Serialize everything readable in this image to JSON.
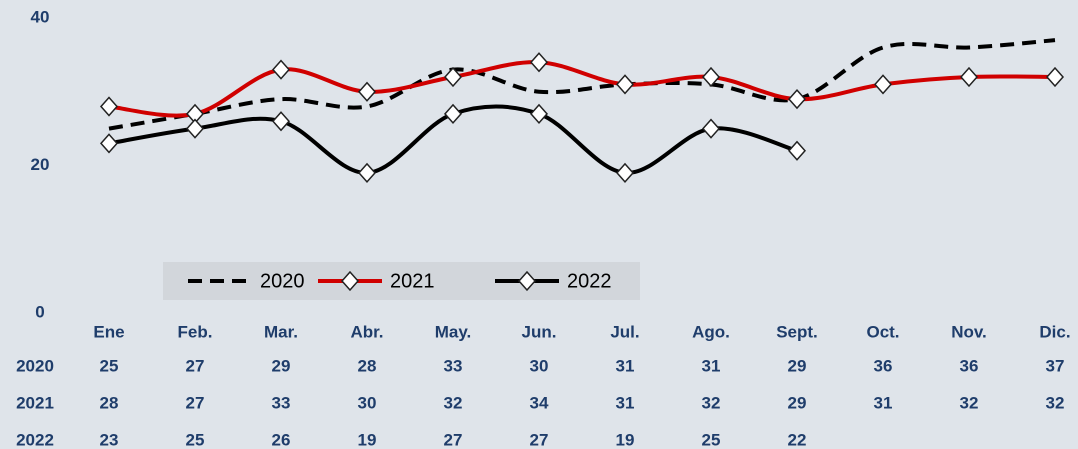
{
  "chart_data": {
    "type": "line",
    "categories": [
      "Ene",
      "Feb.",
      "Mar.",
      "Abr.",
      "May.",
      "Jun.",
      "Jul.",
      "Ago.",
      "Sept.",
      "Oct.",
      "Nov.",
      "Dic."
    ],
    "series": [
      {
        "name": "2020",
        "color": "#000000",
        "dashed": true,
        "markers": false,
        "values": [
          25,
          27,
          29,
          28,
          33,
          30,
          31,
          31,
          29,
          36,
          36,
          37
        ]
      },
      {
        "name": "2021",
        "color": "#d00000",
        "dashed": false,
        "markers": true,
        "values": [
          28,
          27,
          33,
          30,
          32,
          34,
          31,
          32,
          29,
          31,
          32,
          32
        ]
      },
      {
        "name": "2022",
        "color": "#000000",
        "dashed": false,
        "markers": true,
        "values": [
          23,
          25,
          26,
          19,
          27,
          27,
          19,
          25,
          22,
          null,
          null,
          null
        ]
      }
    ],
    "ylim": [
      0,
      40
    ],
    "yticks": [
      0,
      20,
      40
    ],
    "grid": false,
    "data_table": true
  }
}
